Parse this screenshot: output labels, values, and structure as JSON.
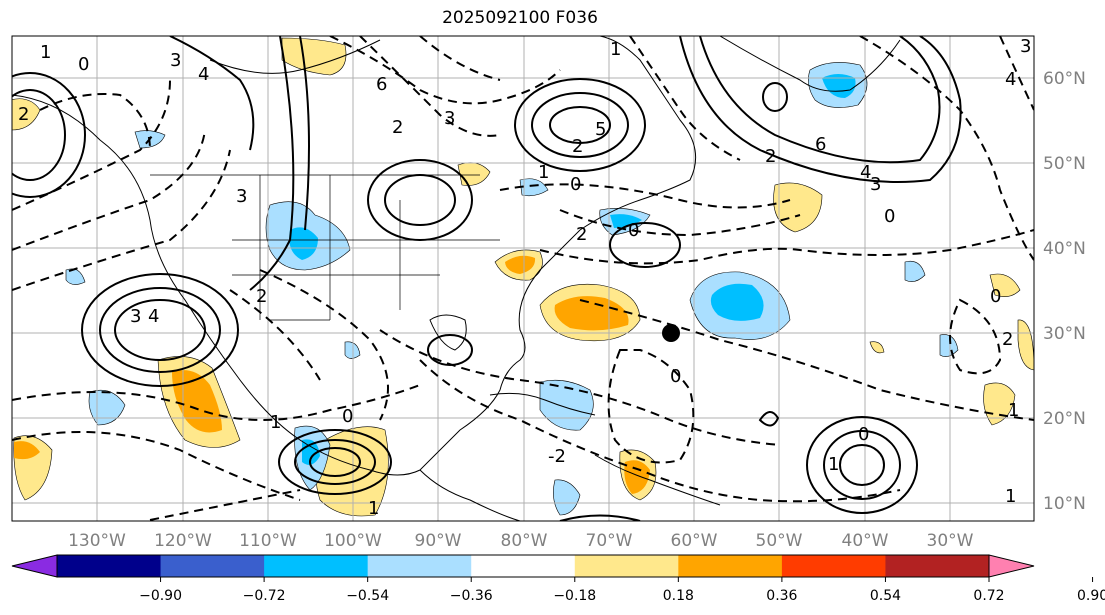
{
  "title": "2025092100 F036",
  "map": {
    "lon_labels": [
      "130°W",
      "120°W",
      "110°W",
      "100°W",
      "90°W",
      "80°W",
      "70°W",
      "60°W",
      "50°W",
      "40°W",
      "30°W"
    ],
    "lat_labels": [
      "60°N",
      "50°N",
      "40°N",
      "30°N",
      "20°N",
      "10°N"
    ],
    "contour_labels": [
      "1",
      "0",
      "3",
      "4",
      "2",
      "1",
      "5",
      "6",
      "3",
      "2",
      "3",
      "4",
      "3",
      "2",
      "1",
      "0",
      "6",
      "4",
      "3",
      "2",
      "0",
      "0",
      "2",
      "3",
      "4",
      "1",
      "1",
      "0",
      "-2",
      "0",
      "1",
      "0",
      "1",
      "2",
      "0",
      "1",
      "2"
    ],
    "marker": "storm-position-dot"
  },
  "colorbar": {
    "ticks": [
      "−0.90",
      "−0.72",
      "−0.54",
      "−0.36",
      "−0.18",
      "0.18",
      "0.36",
      "0.54",
      "0.72",
      "0.90"
    ],
    "colors": [
      "#8a2be2",
      "#00008b",
      "#3a5fcd",
      "#00bfff",
      "#aadfff",
      "#ffffff",
      "#ffe88c",
      "#ffa500",
      "#ff3c00",
      "#b22222",
      "#ff80b0"
    ]
  }
}
